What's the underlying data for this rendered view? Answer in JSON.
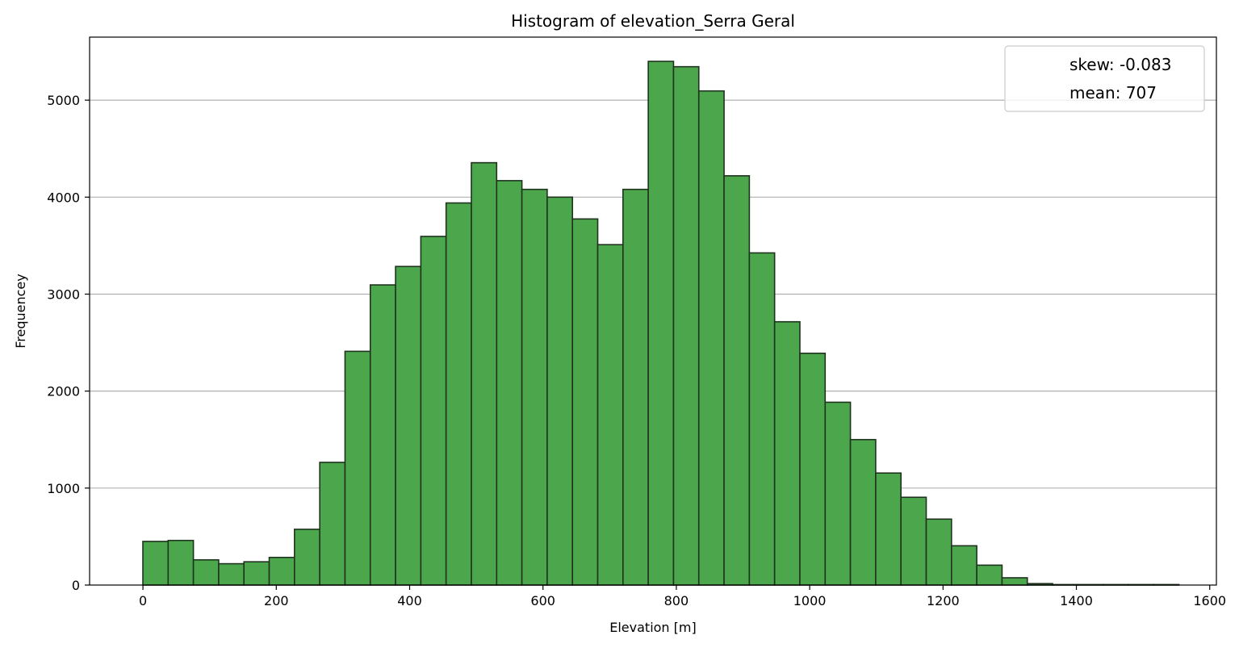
{
  "chart_data": {
    "type": "bar",
    "title": "Histogram of elevation_Serra Geral",
    "xlabel": "Elevation [m]",
    "ylabel": "Frequencey",
    "xlim": [
      -80,
      1610
    ],
    "ylim": [
      0,
      5650
    ],
    "grid": "y",
    "legend_position": "upper right",
    "legend": [
      "skew: -0.083",
      "mean: 707"
    ],
    "x_ticks": [
      0,
      200,
      400,
      600,
      800,
      1000,
      1200,
      1400,
      1600
    ],
    "y_ticks": [
      0,
      1000,
      2000,
      3000,
      4000,
      5000
    ],
    "bar_color": "#4ca64c",
    "edge_color": "#1f331f",
    "bins": {
      "edges": [
        -38,
        -0.1,
        37.8,
        75.7,
        113.6,
        151.5,
        189.4,
        227.3,
        265.2,
        303.1,
        341,
        378.9,
        416.8,
        454.7,
        492.6,
        530.5,
        568.4,
        606.3,
        644.2,
        682.1,
        720,
        757.9,
        795.8,
        833.7,
        871.6,
        909.5,
        947.4,
        985.3,
        1023.2,
        1061.1,
        1099,
        1136.9,
        1174.8,
        1212.7,
        1250.6,
        1288.5,
        1326.4,
        1364.3,
        1402.2,
        1440.1,
        1478,
        1515.9,
        1553.8
      ],
      "values": [
        0,
        450,
        460,
        260,
        220,
        240,
        285,
        575,
        1265,
        2410,
        3095,
        3285,
        3595,
        3940,
        4355,
        4170,
        4080,
        4000,
        3775,
        3510,
        4080,
        5400,
        5345,
        5095,
        4220,
        3425,
        2715,
        2390,
        1885,
        1500,
        1155,
        905,
        680,
        405,
        205,
        75,
        15,
        5,
        5,
        5,
        5,
        5
      ]
    }
  }
}
